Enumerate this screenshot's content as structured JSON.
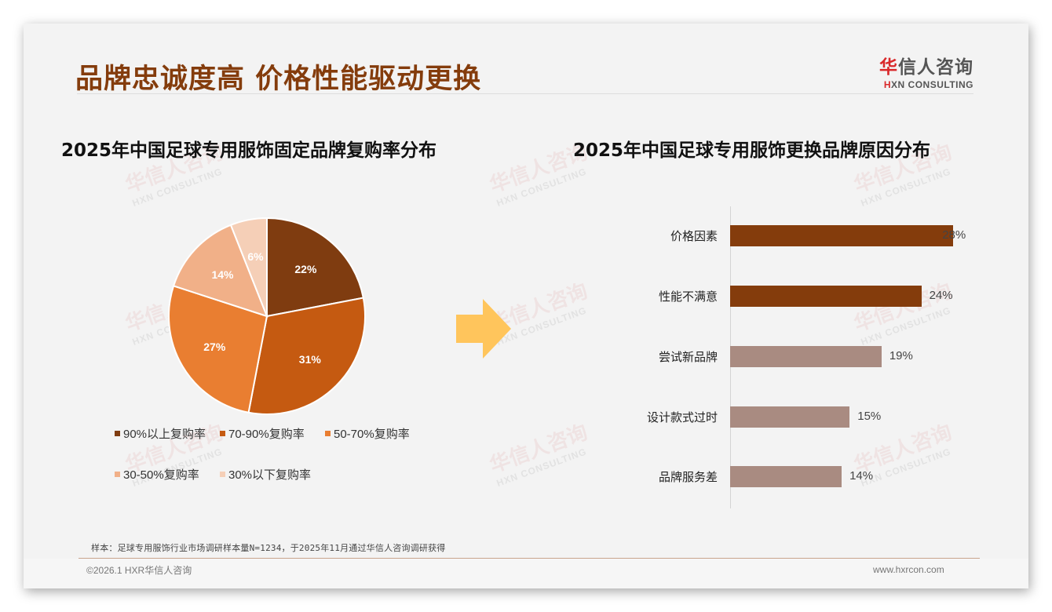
{
  "header": {
    "title": "品牌忠诚度高 价格性能驱动更换",
    "logo_cn_red": "华",
    "logo_cn_rest": "信人咨询",
    "logo_en_red": "H",
    "logo_en_rest": "XN CONSULTING"
  },
  "watermark": {
    "cn": "华信人咨询",
    "en": "HXN CONSULTING"
  },
  "colors": {
    "title": "#843c0c",
    "pie": [
      "#7f3c10",
      "#c55a11",
      "#e97e31",
      "#f1b088",
      "#f5cfb7"
    ],
    "bar_dark": "#843c0c",
    "bar_light": "#a98b81",
    "arrow": "#ffc55c"
  },
  "left_chart": {
    "title": "2025年中国足球专用服饰固定品牌复购率分布"
  },
  "right_chart": {
    "title": "2025年中国足球专用服饰更换品牌原因分布"
  },
  "chart_data": [
    {
      "type": "pie",
      "title": "2025年中国足球专用服饰固定品牌复购率分布",
      "categories": [
        "90%以上复购率",
        "70-90%复购率",
        "50-70%复购率",
        "30-50%复购率",
        "30%以下复购率"
      ],
      "values": [
        22,
        31,
        27,
        14,
        6
      ],
      "labels": [
        "22%",
        "31%",
        "27%",
        "14%",
        "6%"
      ],
      "colors": [
        "#7f3c10",
        "#c55a11",
        "#e97e31",
        "#f1b088",
        "#f5cfb7"
      ],
      "legend_position": "bottom",
      "start_angle": "12 o'clock, clockwise"
    },
    {
      "type": "bar",
      "orientation": "horizontal",
      "title": "2025年中国足球专用服饰更换品牌原因分布",
      "categories": [
        "价格因素",
        "性能不满意",
        "尝试新品牌",
        "设计款式过时",
        "品牌服务差"
      ],
      "values": [
        28,
        24,
        19,
        15,
        14
      ],
      "labels": [
        "28%",
        "24%",
        "19%",
        "15%",
        "14%"
      ],
      "colors": [
        "#843c0c",
        "#843c0c",
        "#a98b81",
        "#a98b81",
        "#a98b81"
      ],
      "xlabel": "",
      "ylabel": "",
      "grid": false
    }
  ],
  "footer": {
    "source": "样本：足球专用服饰行业市场调研样本量N=1234，于2025年11月通过华信人咨询调研获得",
    "copyright": "©2026.1 HXR华信人咨询",
    "website": "www.hxrcon.com"
  }
}
